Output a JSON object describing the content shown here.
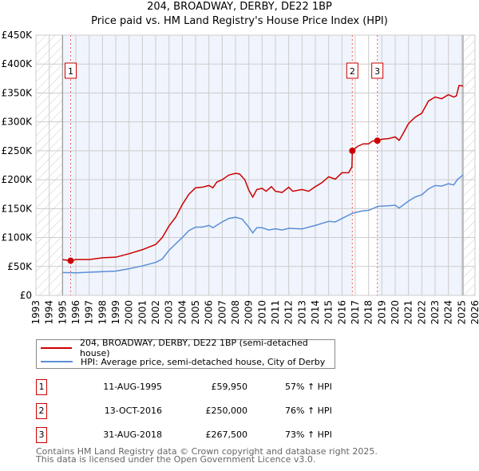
{
  "title": "204, BROADWAY, DERBY, DE22 1BP",
  "subtitle": "Price paid vs. HM Land Registry's House Price Index (HPI)",
  "chart_data": {
    "type": "line",
    "title": "204, BROADWAY, DERBY, DE22 1BP",
    "subtitle": "Price paid vs. HM Land Registry's House Price Index (HPI)",
    "xlim": [
      1993,
      2026
    ],
    "ylim": [
      0,
      450000
    ],
    "x_ticks": [
      "1993",
      "1994",
      "1995",
      "1996",
      "1997",
      "1998",
      "1999",
      "2000",
      "2001",
      "2002",
      "2003",
      "2004",
      "2005",
      "2006",
      "2007",
      "2008",
      "2009",
      "2010",
      "2011",
      "2012",
      "2013",
      "2014",
      "2015",
      "2016",
      "2017",
      "2018",
      "2019",
      "2020",
      "2021",
      "2022",
      "2023",
      "2024",
      "2025",
      "2026"
    ],
    "y_ticks": [
      {
        "v": 0,
        "label": "£0"
      },
      {
        "v": 50000,
        "label": "£50K"
      },
      {
        "v": 100000,
        "label": "£100K"
      },
      {
        "v": 150000,
        "label": "£150K"
      },
      {
        "v": 200000,
        "label": "£200K"
      },
      {
        "v": 250000,
        "label": "£250K"
      },
      {
        "v": 300000,
        "label": "£300K"
      },
      {
        "v": 350000,
        "label": "£350K"
      },
      {
        "v": 400000,
        "label": "£400K"
      },
      {
        "v": 450000,
        "label": "£450K"
      }
    ],
    "grid": true,
    "data_range": [
      1995,
      2025.1
    ],
    "series": [
      {
        "name": "204, BROADWAY, DERBY, DE22 1BP (semi-detached house)",
        "color": "#cc0000",
        "points": [
          [
            1995,
            62000
          ],
          [
            1995.61,
            59950
          ],
          [
            1996,
            62000
          ],
          [
            1997,
            62000
          ],
          [
            1998,
            65000
          ],
          [
            1999,
            66000
          ],
          [
            2000,
            72000
          ],
          [
            2001,
            79000
          ],
          [
            2002,
            88000
          ],
          [
            2002.5,
            100000
          ],
          [
            2003,
            120000
          ],
          [
            2003.5,
            135000
          ],
          [
            2004,
            157000
          ],
          [
            2004.5,
            175000
          ],
          [
            2005,
            186000
          ],
          [
            2005.5,
            187000
          ],
          [
            2006,
            190000
          ],
          [
            2006.3,
            186000
          ],
          [
            2006.6,
            196000
          ],
          [
            2007,
            200000
          ],
          [
            2007.5,
            208000
          ],
          [
            2008,
            211000
          ],
          [
            2008.3,
            210000
          ],
          [
            2008.7,
            200000
          ],
          [
            2009,
            182000
          ],
          [
            2009.3,
            170000
          ],
          [
            2009.6,
            183000
          ],
          [
            2010,
            185000
          ],
          [
            2010.3,
            180000
          ],
          [
            2010.7,
            188000
          ],
          [
            2011,
            180000
          ],
          [
            2011.5,
            178000
          ],
          [
            2012,
            187000
          ],
          [
            2012.3,
            180000
          ],
          [
            2013,
            183000
          ],
          [
            2013.5,
            180000
          ],
          [
            2014,
            188000
          ],
          [
            2014.5,
            195000
          ],
          [
            2015,
            205000
          ],
          [
            2015.5,
            201000
          ],
          [
            2016,
            212000
          ],
          [
            2016.5,
            212000
          ],
          [
            2016.75,
            222000
          ],
          [
            2016.78,
            250000
          ],
          [
            2017.2,
            258000
          ],
          [
            2017.6,
            262000
          ],
          [
            2018,
            262000
          ],
          [
            2018.3,
            267000
          ],
          [
            2018.66,
            267500
          ],
          [
            2019,
            270000
          ],
          [
            2019.5,
            271000
          ],
          [
            2020,
            274000
          ],
          [
            2020.3,
            268000
          ],
          [
            2020.6,
            280000
          ],
          [
            2021,
            297000
          ],
          [
            2021.5,
            308000
          ],
          [
            2022,
            315000
          ],
          [
            2022.5,
            336000
          ],
          [
            2023,
            343000
          ],
          [
            2023.5,
            340000
          ],
          [
            2024,
            347000
          ],
          [
            2024.4,
            343000
          ],
          [
            2024.6,
            345000
          ],
          [
            2024.8,
            363000
          ],
          [
            2025.1,
            362000
          ]
        ]
      },
      {
        "name": "HPI: Average price, semi-detached house, City of Derby",
        "color": "#5b8fd6",
        "points": [
          [
            1995,
            39500
          ],
          [
            1996,
            39000
          ],
          [
            1997,
            40000
          ],
          [
            1998,
            41000
          ],
          [
            1999,
            42000
          ],
          [
            2000,
            46000
          ],
          [
            2001,
            51000
          ],
          [
            2002,
            57000
          ],
          [
            2002.5,
            63000
          ],
          [
            2003,
            78000
          ],
          [
            2004,
            100000
          ],
          [
            2004.5,
            112000
          ],
          [
            2005,
            118000
          ],
          [
            2005.5,
            118000
          ],
          [
            2006,
            121000
          ],
          [
            2006.3,
            117000
          ],
          [
            2007,
            127000
          ],
          [
            2007.5,
            133000
          ],
          [
            2008,
            135000
          ],
          [
            2008.5,
            132000
          ],
          [
            2009,
            118000
          ],
          [
            2009.3,
            108000
          ],
          [
            2009.6,
            117000
          ],
          [
            2010,
            117000
          ],
          [
            2010.5,
            113000
          ],
          [
            2011,
            115000
          ],
          [
            2011.5,
            113000
          ],
          [
            2012,
            116000
          ],
          [
            2013,
            115000
          ],
          [
            2014,
            121000
          ],
          [
            2015,
            128000
          ],
          [
            2015.5,
            127000
          ],
          [
            2016,
            133000
          ],
          [
            2016.8,
            142000
          ],
          [
            2017.5,
            146000
          ],
          [
            2018,
            147000
          ],
          [
            2018.7,
            154000
          ],
          [
            2019.5,
            155000
          ],
          [
            2020,
            156000
          ],
          [
            2020.3,
            151000
          ],
          [
            2021,
            163000
          ],
          [
            2021.5,
            170000
          ],
          [
            2022,
            174000
          ],
          [
            2022.5,
            184000
          ],
          [
            2023,
            190000
          ],
          [
            2023.5,
            189000
          ],
          [
            2024,
            193000
          ],
          [
            2024.4,
            191000
          ],
          [
            2024.7,
            201000
          ],
          [
            2025.1,
            208000
          ]
        ]
      }
    ],
    "sales": [
      {
        "id": "1",
        "x": 1995.61,
        "price": 59950
      },
      {
        "id": "2",
        "x": 2016.78,
        "price": 250000
      },
      {
        "id": "3",
        "x": 2018.66,
        "price": 267500
      }
    ]
  },
  "legend": {
    "property": "204, BROADWAY, DERBY, DE22 1BP (semi-detached house)",
    "hpi": "HPI: Average price, semi-detached house, City of Derby"
  },
  "transactions": [
    {
      "id": "1",
      "date": "11-AUG-1995",
      "price": "£59,950",
      "hpi": "57% ↑ HPI"
    },
    {
      "id": "2",
      "date": "13-OCT-2016",
      "price": "£250,000",
      "hpi": "76% ↑ HPI"
    },
    {
      "id": "3",
      "date": "31-AUG-2018",
      "price": "£267,500",
      "hpi": "73% ↑ HPI"
    }
  ],
  "footer": {
    "line1": "Contains HM Land Registry data © Crown copyright and database right 2025.",
    "line2": "This data is licensed under the Open Government Licence v3.0."
  }
}
